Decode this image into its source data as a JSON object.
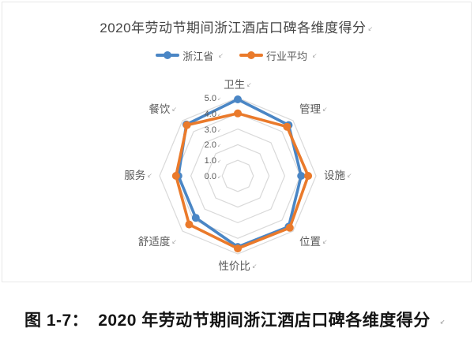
{
  "page": {
    "background": "#ffffff"
  },
  "chart_panel": {
    "border_color": "#e8e8e8",
    "background": "#ffffff"
  },
  "title": {
    "text": "2020年劳动节期间浙江酒店口碑各维度得分"
  },
  "legend": [
    {
      "name": "浙江省",
      "color": "#4A86C5"
    },
    {
      "name": "行业平均",
      "color": "#EA7A2B"
    }
  ],
  "marks": {
    "char": "↙"
  },
  "chart_data": {
    "type": "radar",
    "title": "2020年劳动节期间浙江酒店口碑各维度得分",
    "categories": [
      "卫生",
      "管理",
      "设施",
      "位置",
      "性价比",
      "舒适度",
      "服务",
      "餐饮"
    ],
    "series": [
      {
        "name": "浙江省",
        "color": "#4A86C5",
        "values": [
          4.9,
          4.6,
          4.05,
          4.6,
          4.55,
          3.8,
          3.8,
          4.65
        ]
      },
      {
        "name": "行业平均",
        "color": "#EA7A2B",
        "values": [
          4.0,
          4.45,
          4.5,
          4.7,
          4.65,
          4.4,
          3.95,
          4.6
        ]
      }
    ],
    "r_axis": {
      "min": 0,
      "max": 5,
      "step": 1,
      "tick_labels": [
        "5.0",
        "4.0",
        "3.0",
        "2.0",
        "1.0",
        "0.0"
      ]
    },
    "grid": true,
    "grid_color": "#d9d9d9",
    "label_color": "#595959",
    "legend_position": "top"
  },
  "caption": {
    "prefix": "图 1-7：",
    "text": "2020 年劳动节期间浙江酒店口碑各维度得分"
  }
}
